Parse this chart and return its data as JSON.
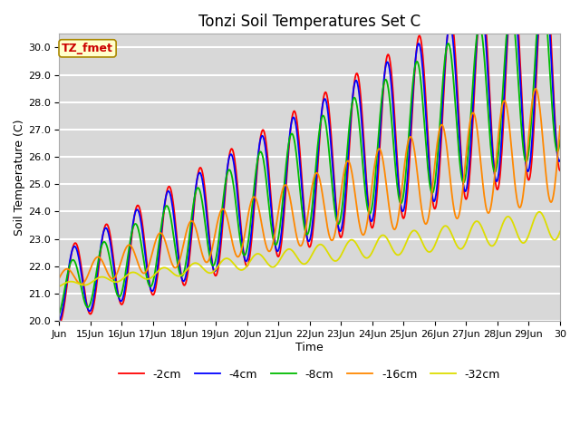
{
  "title": "Tonzi Soil Temperatures Set C",
  "xlabel": "Time",
  "ylabel": "Soil Temperature (C)",
  "ylim": [
    20.0,
    30.5
  ],
  "xlim": [
    0,
    16
  ],
  "series_labels": [
    "-2cm",
    "-4cm",
    "-8cm",
    "-16cm",
    "-32cm"
  ],
  "series_colors": [
    "#ff0000",
    "#0000ff",
    "#00bb00",
    "#ff8800",
    "#dddd00"
  ],
  "xtick_labels": [
    "Jun",
    "15Jun",
    "16Jun",
    "17Jun",
    "18Jun",
    "19Jun",
    "20Jun",
    "21Jun",
    "22Jun",
    "23Jun",
    "24Jun",
    "25Jun",
    "26Jun",
    "27Jun",
    "28Jun",
    "29Jun",
    "30"
  ],
  "ytick_values": [
    20.0,
    21.0,
    22.0,
    23.0,
    24.0,
    25.0,
    26.0,
    27.0,
    28.0,
    29.0,
    30.0
  ],
  "annotation_text": "TZ_fmet",
  "annotation_color": "#cc0000",
  "annotation_bg": "#ffffcc",
  "annotation_border": "#aa8800",
  "background_color": "#d8d8d8",
  "grid_color": "#ffffff",
  "title_fontsize": 12,
  "axis_fontsize": 9,
  "tick_fontsize": 8
}
